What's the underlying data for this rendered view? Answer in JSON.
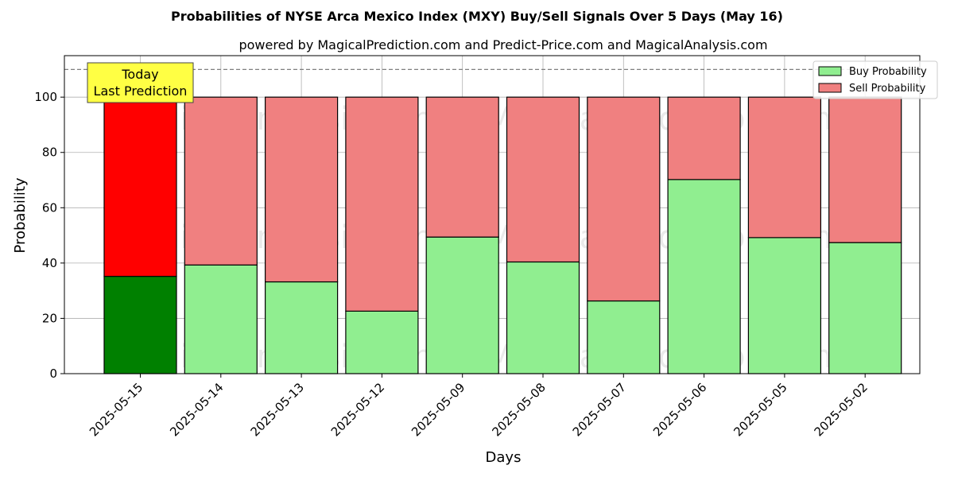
{
  "chart_data": {
    "type": "bar",
    "stacked": true,
    "title": "Probabilities of NYSE Arca Mexico Index (MXY) Buy/Sell Signals Over 5 Days (May 16)",
    "subtitle": "powered by MagicalPrediction.com and Predict-Price.com and MagicalAnalysis.com",
    "xlabel": "Days",
    "ylabel": "Probability",
    "ylim": [
      0,
      115
    ],
    "yticks": [
      0,
      20,
      40,
      60,
      80,
      100
    ],
    "grid": true,
    "legend_position": "top-right",
    "categories": [
      "2025-05-15",
      "2025-05-14",
      "2025-05-13",
      "2025-05-12",
      "2025-05-09",
      "2025-05-08",
      "2025-05-07",
      "2025-05-06",
      "2025-05-05",
      "2025-05-02"
    ],
    "series": [
      {
        "name": "Buy Probability",
        "values": [
          35.2,
          39.3,
          33.2,
          22.6,
          49.4,
          40.4,
          26.3,
          70.2,
          49.2,
          47.4
        ],
        "color": "#90ee90",
        "highlight_color": "#008000"
      },
      {
        "name": "Sell Probability",
        "values": [
          64.8,
          60.7,
          66.8,
          77.4,
          50.6,
          59.6,
          73.7,
          29.8,
          50.8,
          52.6
        ],
        "color": "#f08080",
        "highlight_color": "#ff0000"
      }
    ],
    "reference_line": {
      "y": 110
    },
    "annotation": {
      "lines": [
        "Today",
        "Last Prediction"
      ],
      "category_index": 0,
      "background": "#ffff44"
    },
    "watermarks": [
      "MagicalAnalysis.com",
      "MagicalPrediction.com"
    ]
  }
}
